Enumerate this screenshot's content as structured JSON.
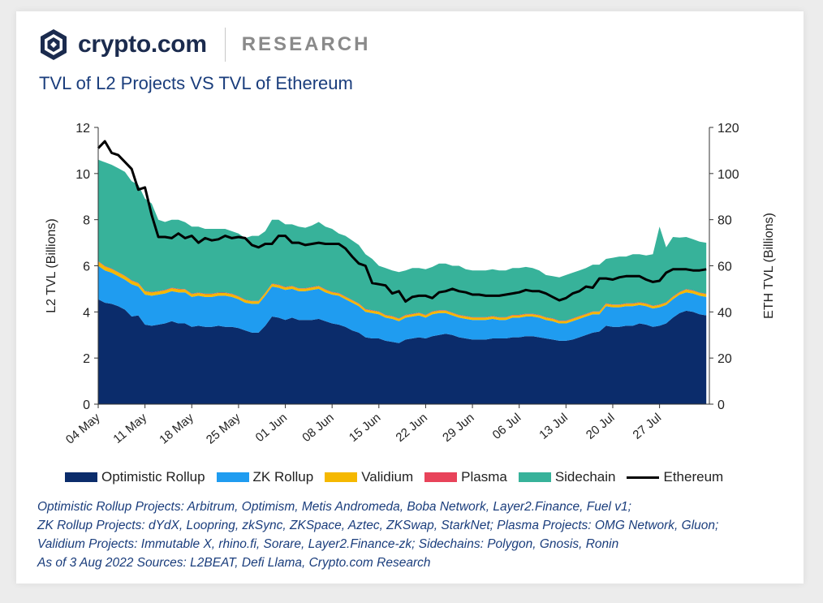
{
  "header": {
    "brand_name": "crypto.com",
    "brand_sub": "RESEARCH"
  },
  "chart_data": {
    "type": "area",
    "title": "TVL of L2 Projects VS TVL of Ethereum",
    "ylabel": "L2 TVL (Billions)",
    "y2label": "ETH TVL (Billions)",
    "ylim": [
      0,
      12
    ],
    "y2lim": [
      0,
      120
    ],
    "yticks": [
      "0",
      "2",
      "4",
      "6",
      "8",
      "10",
      "12"
    ],
    "y2ticks": [
      "0",
      "20",
      "40",
      "60",
      "80",
      "100",
      "120"
    ],
    "xticks": [
      "04 May",
      "11 May",
      "18 May",
      "25 May",
      "01 Jun",
      "08 Jun",
      "15 Jun",
      "22 Jun",
      "29 Jun",
      "06 Jul",
      "13 Jul",
      "20 Jul",
      "27 Jul"
    ],
    "grid": false,
    "legend_position": "bottom",
    "stacked": true,
    "x_days": [
      0,
      1,
      2,
      3,
      4,
      5,
      6,
      7,
      8,
      9,
      10,
      11,
      12,
      13,
      14,
      15,
      16,
      17,
      18,
      19,
      20,
      21,
      22,
      23,
      24,
      25,
      26,
      27,
      28,
      29,
      30,
      31,
      32,
      33,
      34,
      35,
      36,
      37,
      38,
      39,
      40,
      41,
      42,
      43,
      44,
      45,
      46,
      47,
      48,
      49,
      50,
      51,
      52,
      53,
      54,
      55,
      56,
      57,
      58,
      59,
      60,
      61,
      62,
      63,
      64,
      65,
      66,
      67,
      68,
      69,
      70,
      71,
      72,
      73,
      74,
      75,
      76,
      77,
      78,
      79,
      80,
      81,
      82,
      83,
      84,
      85,
      86,
      87,
      88,
      89,
      90,
      91
    ],
    "series": [
      {
        "name": "Optimistic Rollup",
        "color": "#0b2c6b",
        "axis": "left",
        "values": [
          4.55,
          4.4,
          4.35,
          4.25,
          4.1,
          3.8,
          3.85,
          3.45,
          3.4,
          3.45,
          3.5,
          3.6,
          3.5,
          3.5,
          3.35,
          3.4,
          3.35,
          3.35,
          3.4,
          3.35,
          3.35,
          3.3,
          3.2,
          3.1,
          3.1,
          3.4,
          3.8,
          3.75,
          3.65,
          3.75,
          3.65,
          3.65,
          3.65,
          3.7,
          3.6,
          3.5,
          3.45,
          3.35,
          3.2,
          3.1,
          2.9,
          2.85,
          2.85,
          2.75,
          2.7,
          2.65,
          2.8,
          2.85,
          2.9,
          2.85,
          2.95,
          3.0,
          3.05,
          3.0,
          2.9,
          2.85,
          2.8,
          2.8,
          2.8,
          2.85,
          2.85,
          2.85,
          2.9,
          2.9,
          2.95,
          2.95,
          2.9,
          2.85,
          2.8,
          2.75,
          2.75,
          2.8,
          2.9,
          3.0,
          3.1,
          3.15,
          3.4,
          3.35,
          3.35,
          3.4,
          3.4,
          3.5,
          3.45,
          3.35,
          3.4,
          3.5,
          3.75,
          3.95,
          4.05,
          4.0,
          3.9,
          3.85
        ]
      },
      {
        "name": "ZK Rollup",
        "color": "#1f9cf0",
        "axis": "left",
        "values": [
          1.45,
          1.4,
          1.35,
          1.3,
          1.3,
          1.4,
          1.25,
          1.3,
          1.3,
          1.3,
          1.3,
          1.3,
          1.35,
          1.35,
          1.3,
          1.3,
          1.3,
          1.3,
          1.3,
          1.35,
          1.3,
          1.25,
          1.2,
          1.25,
          1.25,
          1.3,
          1.3,
          1.3,
          1.3,
          1.25,
          1.25,
          1.25,
          1.3,
          1.3,
          1.25,
          1.25,
          1.25,
          1.2,
          1.2,
          1.15,
          1.1,
          1.1,
          1.05,
          1.0,
          1.0,
          0.95,
          0.95,
          0.95,
          0.95,
          0.9,
          0.95,
          0.95,
          0.9,
          0.85,
          0.85,
          0.85,
          0.85,
          0.85,
          0.85,
          0.85,
          0.8,
          0.8,
          0.85,
          0.85,
          0.85,
          0.85,
          0.85,
          0.8,
          0.8,
          0.75,
          0.75,
          0.8,
          0.8,
          0.8,
          0.8,
          0.75,
          0.85,
          0.85,
          0.85,
          0.85,
          0.85,
          0.8,
          0.8,
          0.8,
          0.8,
          0.8,
          0.8,
          0.8,
          0.8,
          0.8,
          0.8,
          0.8
        ]
      },
      {
        "name": "Validium",
        "color": "#f5b800",
        "axis": "left",
        "values": [
          0.18,
          0.17,
          0.16,
          0.16,
          0.15,
          0.15,
          0.14,
          0.14,
          0.14,
          0.13,
          0.13,
          0.13,
          0.13,
          0.12,
          0.12,
          0.12,
          0.12,
          0.12,
          0.12,
          0.12,
          0.12,
          0.11,
          0.11,
          0.11,
          0.11,
          0.11,
          0.11,
          0.11,
          0.11,
          0.11,
          0.11,
          0.11,
          0.11,
          0.11,
          0.11,
          0.1,
          0.1,
          0.1,
          0.1,
          0.1,
          0.1,
          0.1,
          0.1,
          0.1,
          0.1,
          0.1,
          0.1,
          0.1,
          0.1,
          0.1,
          0.1,
          0.1,
          0.1,
          0.1,
          0.1,
          0.1,
          0.1,
          0.1,
          0.1,
          0.1,
          0.1,
          0.1,
          0.1,
          0.1,
          0.1,
          0.1,
          0.1,
          0.1,
          0.1,
          0.1,
          0.1,
          0.1,
          0.1,
          0.1,
          0.1,
          0.1,
          0.1,
          0.1,
          0.1,
          0.1,
          0.1,
          0.1,
          0.1,
          0.1,
          0.1,
          0.1,
          0.1,
          0.1,
          0.12,
          0.12,
          0.12,
          0.12
        ]
      },
      {
        "name": "Plasma",
        "color": "#e8435a",
        "axis": "left",
        "values": [
          0.02,
          0.02,
          0.02,
          0.02,
          0.02,
          0.02,
          0.02,
          0.02,
          0.02,
          0.02,
          0.02,
          0.02,
          0.02,
          0.02,
          0.02,
          0.02,
          0.02,
          0.02,
          0.02,
          0.02,
          0.02,
          0.02,
          0.02,
          0.02,
          0.02,
          0.02,
          0.02,
          0.02,
          0.02,
          0.02,
          0.02,
          0.02,
          0.02,
          0.02,
          0.02,
          0.02,
          0.02,
          0.02,
          0.02,
          0.02,
          0.02,
          0.02,
          0.02,
          0.02,
          0.02,
          0.02,
          0.02,
          0.02,
          0.02,
          0.02,
          0.02,
          0.02,
          0.02,
          0.02,
          0.02,
          0.02,
          0.02,
          0.02,
          0.02,
          0.02,
          0.02,
          0.02,
          0.02,
          0.02,
          0.02,
          0.02,
          0.02,
          0.02,
          0.02,
          0.02,
          0.02,
          0.02,
          0.02,
          0.02,
          0.02,
          0.02,
          0.02,
          0.02,
          0.02,
          0.02,
          0.02,
          0.02,
          0.02,
          0.02,
          0.02,
          0.02,
          0.02,
          0.02,
          0.02,
          0.02,
          0.02,
          0.02
        ]
      },
      {
        "name": "Sidechain",
        "color": "#37b29a",
        "axis": "left",
        "values": [
          4.4,
          4.5,
          4.5,
          4.5,
          4.5,
          4.3,
          4.25,
          4.0,
          3.84,
          3.1,
          2.95,
          2.95,
          3.0,
          2.9,
          2.91,
          2.86,
          2.81,
          2.81,
          2.76,
          2.76,
          2.71,
          2.72,
          2.67,
          2.82,
          2.82,
          2.67,
          2.77,
          2.82,
          2.72,
          2.67,
          2.67,
          2.62,
          2.67,
          2.77,
          2.72,
          2.73,
          2.58,
          2.63,
          2.58,
          2.53,
          2.38,
          2.23,
          1.98,
          2.03,
          1.98,
          2.01,
          1.93,
          1.98,
          1.93,
          1.98,
          1.93,
          2.03,
          2.03,
          2.03,
          2.13,
          2.03,
          2.03,
          2.03,
          2.03,
          2.03,
          2.03,
          2.03,
          2.03,
          2.03,
          2.03,
          1.98,
          1.93,
          1.83,
          1.83,
          1.88,
          1.98,
          1.98,
          1.98,
          1.98,
          2.03,
          2.03,
          1.93,
          2.03,
          2.08,
          2.03,
          2.13,
          2.08,
          2.08,
          2.23,
          3.38,
          2.38,
          2.58,
          2.35,
          2.26,
          2.21,
          2.21,
          2.21
        ]
      },
      {
        "name": "Ethereum",
        "color": "#000000",
        "axis": "right",
        "type": "line",
        "values": [
          111,
          114,
          109,
          108,
          105,
          102,
          93,
          94,
          82,
          72.5,
          72.5,
          72,
          74,
          72,
          73,
          70,
          72,
          71,
          71.5,
          73,
          72,
          72.5,
          72,
          69,
          68,
          69.5,
          69.5,
          73,
          73,
          70,
          70,
          69,
          69.5,
          70,
          69.5,
          69.5,
          69.5,
          67.5,
          64,
          61,
          60,
          52.5,
          52,
          51.5,
          48,
          49,
          44.5,
          46.5,
          47,
          47,
          46,
          48.5,
          49,
          50,
          49,
          48.5,
          47.5,
          47.5,
          47,
          47,
          47,
          47.5,
          48,
          48.5,
          49.5,
          49,
          49,
          48,
          46.5,
          45,
          46,
          48,
          49,
          51,
          50.5,
          54.5,
          54.5,
          54,
          55,
          55.5,
          55.5,
          55.5,
          54,
          53,
          53.5,
          57,
          58.5,
          58.5,
          58.5,
          58,
          58,
          58.5
        ]
      }
    ]
  },
  "legend": [
    {
      "label": "Optimistic Rollup",
      "color": "#0b2c6b",
      "kind": "swatch"
    },
    {
      "label": "ZK Rollup",
      "color": "#1f9cf0",
      "kind": "swatch"
    },
    {
      "label": "Validium",
      "color": "#f5b800",
      "kind": "swatch"
    },
    {
      "label": "Plasma",
      "color": "#e8435a",
      "kind": "swatch"
    },
    {
      "label": "Sidechain",
      "color": "#37b29a",
      "kind": "swatch"
    },
    {
      "label": "Ethereum",
      "color": "#000000",
      "kind": "line"
    }
  ],
  "notes": [
    "Optimistic Rollup Projects: Arbitrum, Optimism, Metis Andromeda, Boba Network, Layer2.Finance, Fuel v1;",
    "ZK Rollup Projects: dYdX, Loopring, zkSync, ZKSpace, Aztec, ZKSwap, StarkNet;  Plasma Projects: OMG Network, Gluon;",
    "Validium Projects: Immutable X, rhino.fi, Sorare, Layer2.Finance-zk;    Sidechains: Polygon, Gnosis, Ronin",
    "As of 3 Aug 2022      Sources:  L2BEAT, Defi  Llama, Crypto.com Research"
  ]
}
